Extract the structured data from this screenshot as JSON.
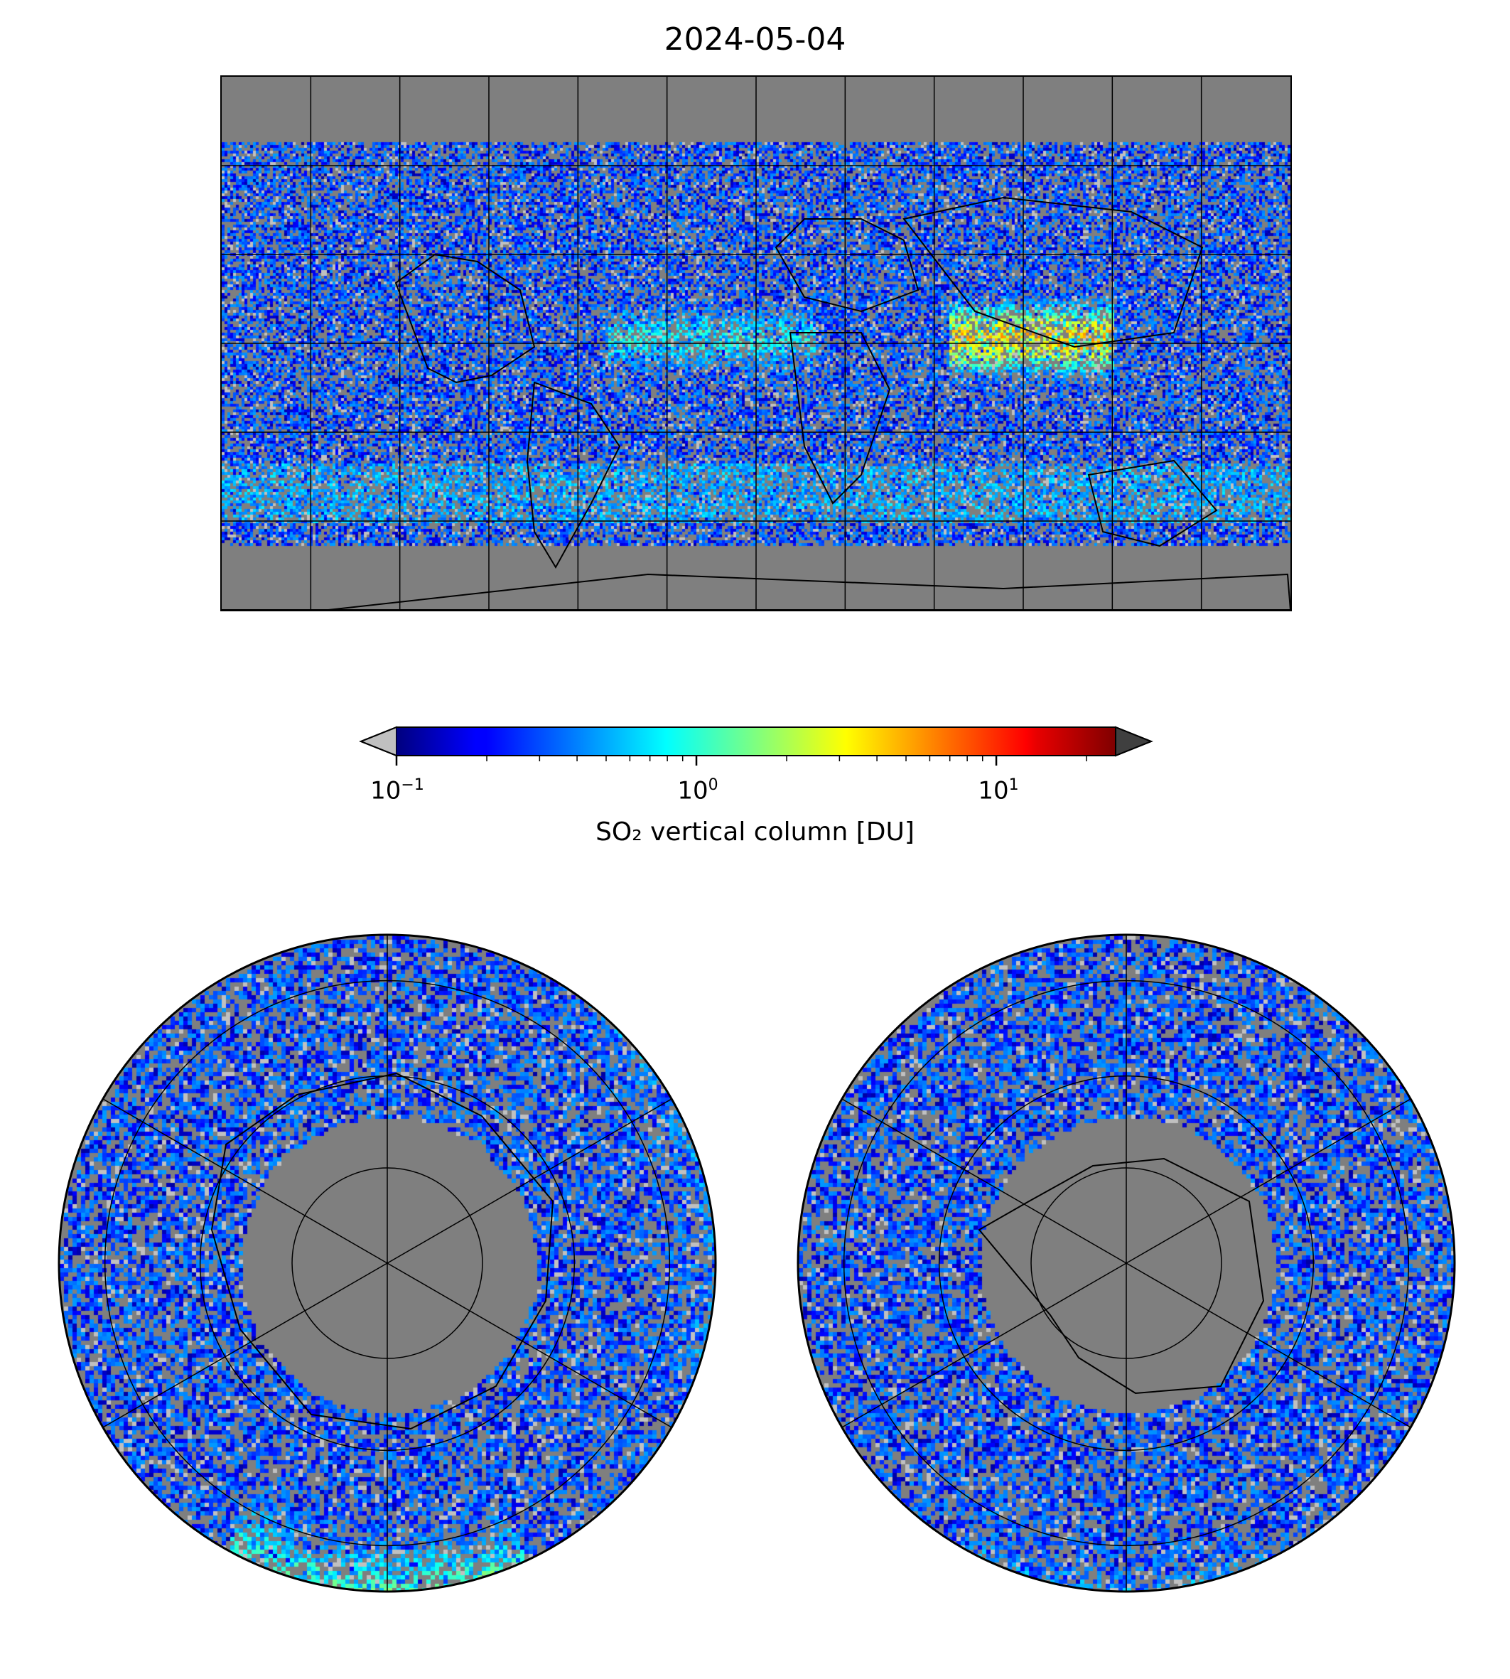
{
  "figure": {
    "title": "2024-05-04"
  },
  "colorbar": {
    "label": "SO₂ vertical column [DU]",
    "scale": "log",
    "colormap": "jet",
    "range": [
      0.1,
      25
    ],
    "extend": "both",
    "under_color": "#c0c0c0",
    "over_color": "#3f3f3f",
    "ticks": [
      {
        "value": 0.1,
        "base": "10",
        "exponent": "−1"
      },
      {
        "value": 1,
        "base": "10",
        "exponent": "0"
      },
      {
        "value": 10,
        "base": "10",
        "exponent": "1"
      }
    ]
  },
  "maps": {
    "background_color": "#7f7f7f",
    "global": {
      "projection": "plate-carree",
      "graticule_lon_step_deg": 30,
      "graticule_lat_step_deg": 30
    },
    "north_polar": {
      "projection": "north-polar-stereographic"
    },
    "south_polar": {
      "projection": "south-polar-stereographic"
    }
  }
}
